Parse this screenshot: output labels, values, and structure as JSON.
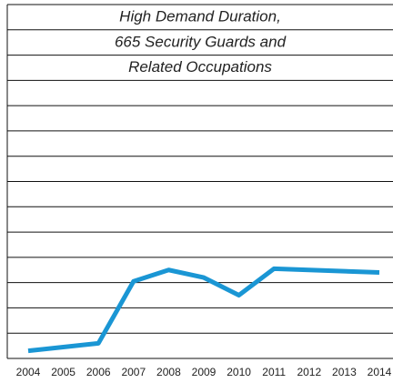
{
  "chart_data": {
    "type": "line",
    "title_lines": [
      "High Demand Duration,",
      "665 Security Guards and",
      "Related Occupations"
    ],
    "categories": [
      "2004",
      "2005",
      "2006",
      "2007",
      "2008",
      "2009",
      "2010",
      "2011",
      "2012",
      "2013",
      "2014"
    ],
    "series": [
      {
        "name": "High Demand Duration",
        "color": "#1a96d4",
        "values": [
          0.3,
          0.45,
          0.6,
          3.05,
          3.5,
          3.2,
          2.5,
          3.55,
          3.5,
          3.45,
          3.4
        ]
      }
    ],
    "ylim": [
      0,
      14
    ],
    "yticks": [
      0,
      1,
      2,
      3,
      4,
      5,
      6,
      7,
      8,
      9,
      10,
      11,
      12,
      13,
      14
    ],
    "grid": true
  }
}
